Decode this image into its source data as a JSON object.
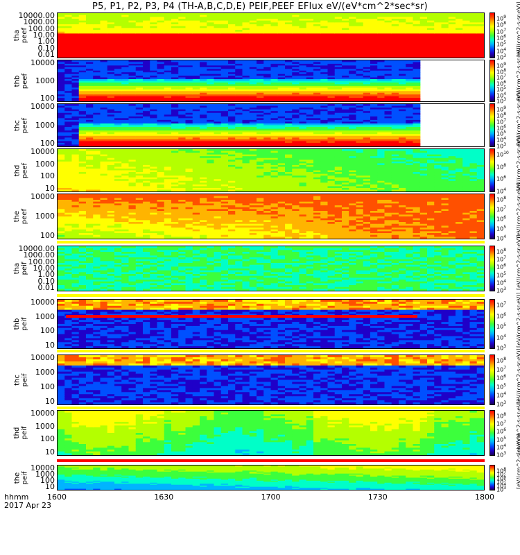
{
  "chart_data": {
    "type": "heatmap",
    "title": "P5, P1, P2, P3, P4 (TH-A,B,C,D,E) PEIF,PEEF EFlux eV/(eV*cm^2*sec*sr)",
    "x_ticks": [
      "1600",
      "1630",
      "1700",
      "1730",
      "1800"
    ],
    "x_label": [
      "hhmm",
      "2017 Apr 23"
    ],
    "colorbar_unit": "[eV/(cm^2-s-sr-eV)]",
    "panels": [
      {
        "label": "tha\npeef",
        "y_ticks": [
          "10000.00",
          "1000.00",
          "100.00",
          "10.00",
          "1.00",
          "0.10",
          "0.01"
        ],
        "cbar_ticks": [
          "10^9",
          "10^8",
          "10^7",
          "10^6",
          "10^5",
          "10^4",
          "10^3"
        ],
        "style": "peef_a"
      },
      {
        "label": "thb\npeef",
        "y_ticks": [
          "10000",
          "1000",
          "100"
        ],
        "cbar_ticks": [
          "10^9",
          "10^8",
          "10^7",
          "10^6",
          "10^5",
          "10^4",
          "10^3"
        ],
        "style": "peef_bc"
      },
      {
        "label": "thc\npeef",
        "y_ticks": [
          "10000",
          "1000",
          "100"
        ],
        "cbar_ticks": [
          "10^9",
          "10^8",
          "10^7",
          "10^6",
          "10^5",
          "10^4",
          "10^3"
        ],
        "style": "peef_bc"
      },
      {
        "label": "thd\npeef",
        "y_ticks": [
          "10000",
          "1000",
          "100",
          "10"
        ],
        "cbar_ticks": [
          "10^10",
          "10^8",
          "10^6",
          "10^4"
        ],
        "style": "peef_d"
      },
      {
        "label": "the\npeef",
        "y_ticks": [
          "10000",
          "1000",
          "100"
        ],
        "cbar_ticks": [
          "10^8",
          "10^7",
          "10^6",
          "10^5",
          "10^4"
        ],
        "style": "peef_e"
      },
      {
        "label": "tha\npeif",
        "y_ticks": [
          "10000.00",
          "1000.00",
          "100.00",
          "10.00",
          "1.00",
          "0.10",
          "0.01"
        ],
        "cbar_ticks": [
          "10^8",
          "10^7",
          "10^6",
          "10^5",
          "10^4",
          "10^3"
        ],
        "style": "peif_a"
      },
      {
        "label": "thb\npeif",
        "y_ticks": [
          "10000",
          "1000",
          "100",
          "10"
        ],
        "cbar_ticks": [
          "10^7",
          "10^6",
          "10^5",
          "10^4",
          "10^3"
        ],
        "style": "peif_bc"
      },
      {
        "label": "thc\npeif",
        "y_ticks": [
          "10000",
          "1000",
          "100",
          "10"
        ],
        "cbar_ticks": [
          "10^8",
          "10^7",
          "10^6",
          "10^5",
          "10^4",
          "10^3"
        ],
        "style": "peif_bc"
      },
      {
        "label": "thd\npeif",
        "y_ticks": [
          "10000",
          "1000",
          "100",
          "10"
        ],
        "cbar_ticks": [
          "10^8",
          "10^7",
          "10^6",
          "10^5",
          "10^4",
          "10^3"
        ],
        "style": "peif_d"
      },
      {
        "label": "the\npeif",
        "y_ticks": [
          "10000",
          "1000",
          "100",
          "10"
        ],
        "cbar_ticks": [
          "10^8",
          "10^7",
          "10^6",
          "10^5",
          "10^4",
          "10^3"
        ],
        "style": "peif_e"
      }
    ]
  },
  "colors": {
    "colormap": [
      "#1a0057",
      "#1f00c8",
      "#0050ff",
      "#00b4ff",
      "#00ffc8",
      "#3cff3c",
      "#b4ff00",
      "#ffff00",
      "#ffb400",
      "#ff5000",
      "#ff0000"
    ],
    "flag_red": "#ff0000",
    "flag_yellow": "#ffff00"
  }
}
